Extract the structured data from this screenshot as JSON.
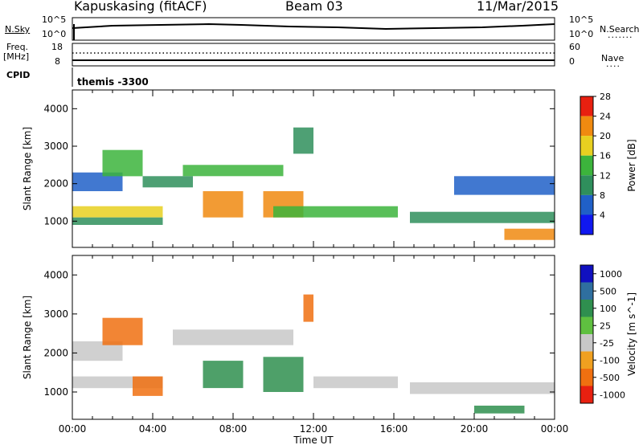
{
  "header": {
    "station": "Kapuskasing (fitACF)",
    "beam": "Beam 03",
    "date": "11/Mar/2015"
  },
  "top_panel": {
    "left_label": "N.Sky",
    "left_ticks": [
      "10^5",
      "10^0"
    ],
    "right_ticks": [
      "10^5",
      "10^0"
    ],
    "right_label": "N.Search",
    "right_legend": "·······"
  },
  "freq_panel": {
    "left_label_top": "Freq.",
    "left_label_unit": "[MHz]",
    "left_ticks": [
      "18",
      "8"
    ],
    "right_ticks": [
      "60",
      "0"
    ],
    "right_label": "Nave",
    "right_legend": "····"
  },
  "cpid": {
    "label": "CPID",
    "value": "themis -3300"
  },
  "chart_data": [
    {
      "type": "heatmap",
      "ylabel": "Slant Range [km]",
      "xlabel": "",
      "xlim": [
        0,
        24
      ],
      "ylim": [
        300,
        4500
      ],
      "yticks": [
        "1000",
        "2000",
        "3000",
        "4000"
      ],
      "colorbar": {
        "label": "Power [dB]",
        "ticks": [
          "4",
          "8",
          "12",
          "16",
          "20",
          "24",
          "28"
        ],
        "colors": [
          "#1018f0",
          "#2060c8",
          "#2f8f5c",
          "#3cb43c",
          "#e8d020",
          "#f08a10",
          "#e82010"
        ]
      },
      "regions": [
        {
          "x": [
            0.0,
            4.5
          ],
          "y": [
            1100,
            1400
          ],
          "level": 20
        },
        {
          "x": [
            0.0,
            4.5
          ],
          "y": [
            900,
            1100
          ],
          "level": 12
        },
        {
          "x": [
            0.0,
            2.5
          ],
          "y": [
            1800,
            2300
          ],
          "level": 8
        },
        {
          "x": [
            1.5,
            3.5
          ],
          "y": [
            2200,
            2900
          ],
          "level": 16
        },
        {
          "x": [
            3.5,
            6.0
          ],
          "y": [
            1900,
            2200
          ],
          "level": 12
        },
        {
          "x": [
            5.5,
            10.5
          ],
          "y": [
            2200,
            2500
          ],
          "level": 16
        },
        {
          "x": [
            6.5,
            8.5
          ],
          "y": [
            1100,
            1800
          ],
          "level": 24
        },
        {
          "x": [
            9.5,
            11.5
          ],
          "y": [
            1100,
            1800
          ],
          "level": 24
        },
        {
          "x": [
            10.0,
            16.2
          ],
          "y": [
            1100,
            1400
          ],
          "level": 16
        },
        {
          "x": [
            11.0,
            12.0
          ],
          "y": [
            2800,
            3500
          ],
          "level": 12
        },
        {
          "x": [
            16.8,
            24.0
          ],
          "y": [
            950,
            1250
          ],
          "level": 12
        },
        {
          "x": [
            19.0,
            24.0
          ],
          "y": [
            1700,
            2200
          ],
          "level": 8
        },
        {
          "x": [
            21.5,
            24.0
          ],
          "y": [
            500,
            800
          ],
          "level": 24
        }
      ]
    },
    {
      "type": "heatmap",
      "ylabel": "Slant Range [km]",
      "xlabel": "Time UT",
      "xlim": [
        0,
        24
      ],
      "ylim": [
        300,
        4500
      ],
      "xticks": [
        "00:00",
        "04:00",
        "08:00",
        "12:00",
        "16:00",
        "20:00",
        "00:00"
      ],
      "yticks": [
        "1000",
        "2000",
        "3000",
        "4000"
      ],
      "colorbar": {
        "label": "Velocity [m s^-1]",
        "ticks": [
          "1000",
          "500",
          "100",
          "25",
          "-25",
          "-100",
          "-500",
          "-1000"
        ],
        "colors": [
          "#1010c0",
          "#2f6f9f",
          "#2f8f4f",
          "#5fc040",
          "#c8c8c8",
          "#f0a020",
          "#f07010",
          "#e82010"
        ]
      },
      "regions": [
        {
          "x": [
            0.0,
            4.5
          ],
          "y": [
            1100,
            1400
          ],
          "level": 0
        },
        {
          "x": [
            0.0,
            2.5
          ],
          "y": [
            1800,
            2300
          ],
          "level": 0
        },
        {
          "x": [
            1.5,
            3.5
          ],
          "y": [
            2200,
            2900
          ],
          "level": -300
        },
        {
          "x": [
            3.0,
            4.5
          ],
          "y": [
            900,
            1400
          ],
          "level": -300
        },
        {
          "x": [
            5.0,
            11.0
          ],
          "y": [
            2200,
            2600
          ],
          "level": 0
        },
        {
          "x": [
            6.5,
            8.5
          ],
          "y": [
            1100,
            1800
          ],
          "level": 100
        },
        {
          "x": [
            9.5,
            11.5
          ],
          "y": [
            1000,
            1900
          ],
          "level": 100
        },
        {
          "x": [
            11.5,
            12.0
          ],
          "y": [
            2800,
            3500
          ],
          "level": -300
        },
        {
          "x": [
            12.0,
            16.2
          ],
          "y": [
            1100,
            1400
          ],
          "level": 0
        },
        {
          "x": [
            16.8,
            24.0
          ],
          "y": [
            950,
            1250
          ],
          "level": 0
        },
        {
          "x": [
            20.0,
            22.5
          ],
          "y": [
            450,
            650
          ],
          "level": 100
        }
      ]
    }
  ]
}
